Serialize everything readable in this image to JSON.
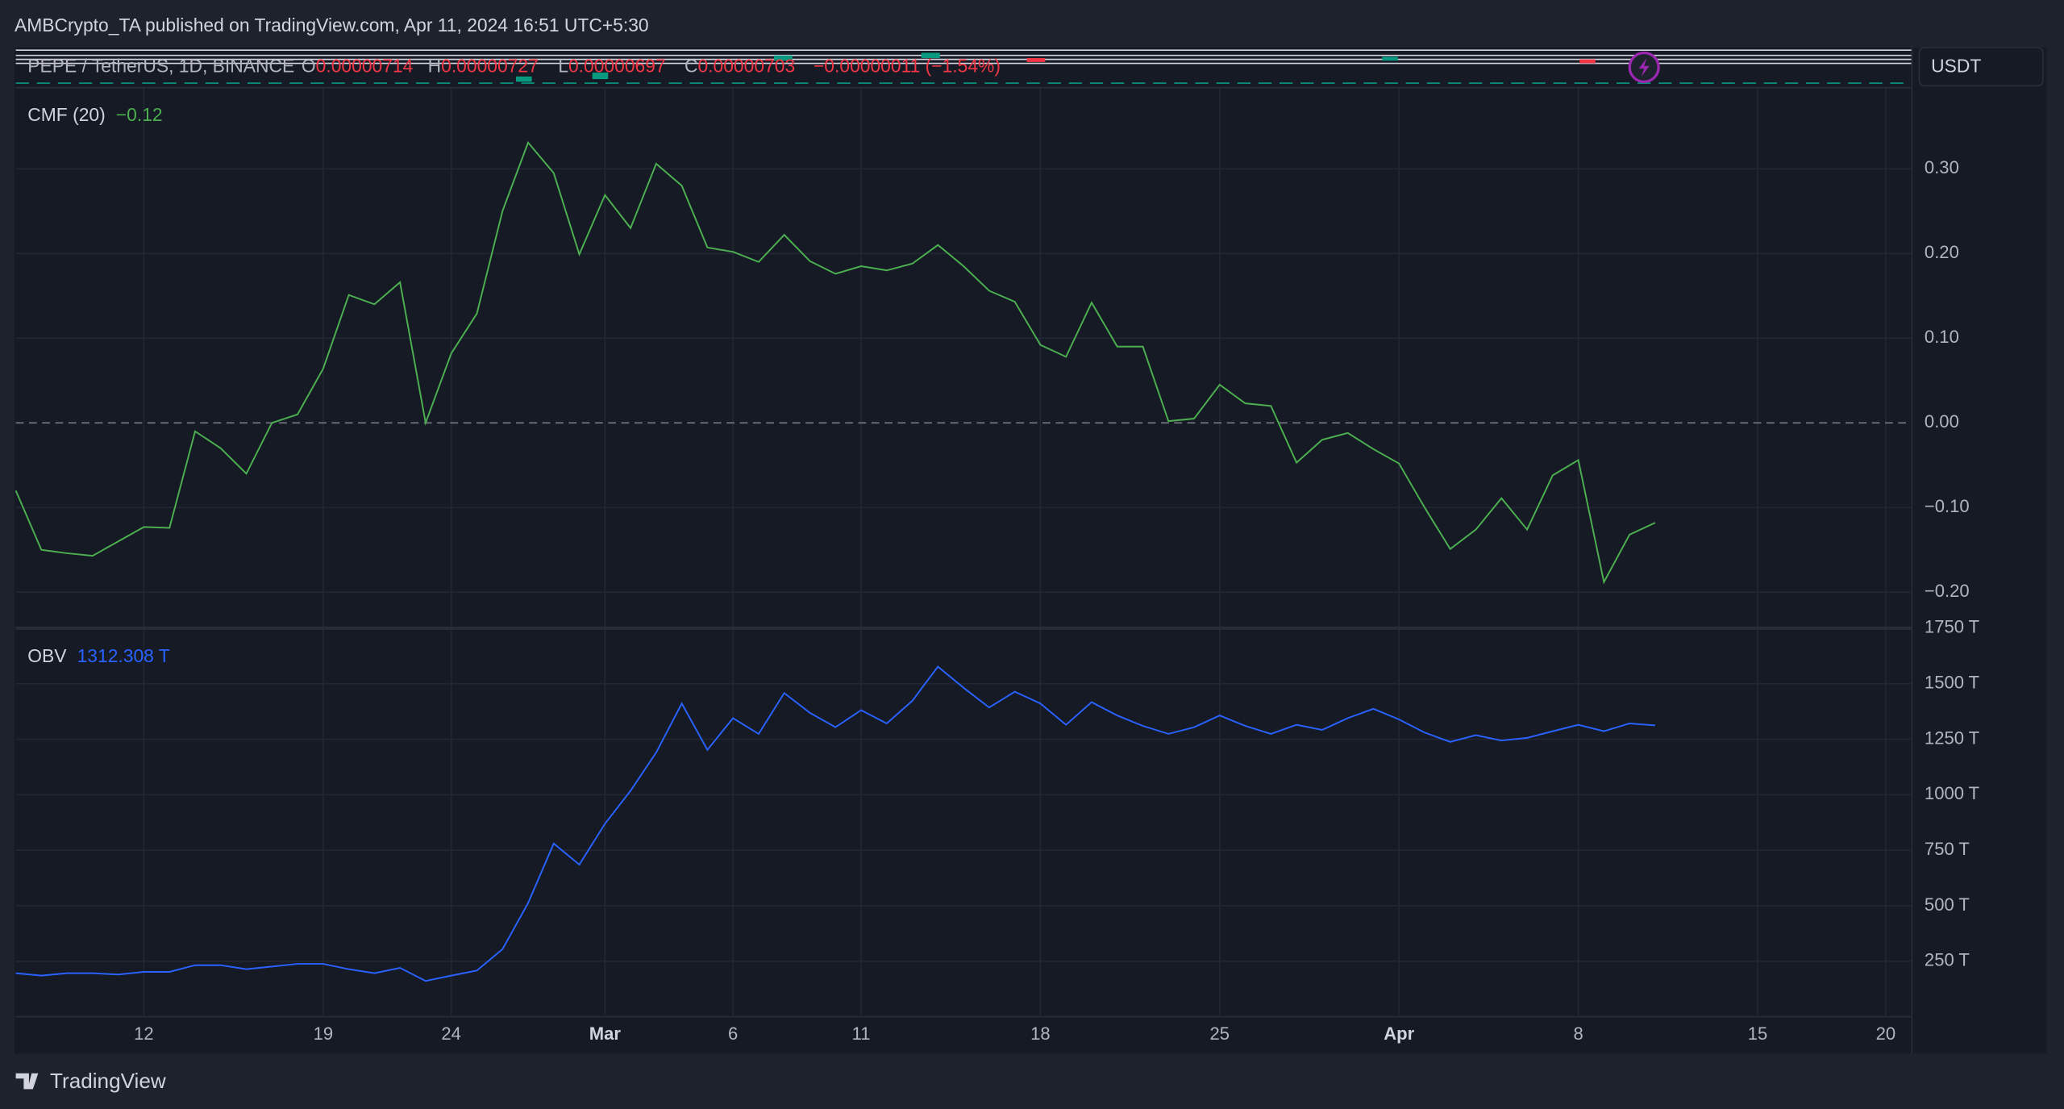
{
  "header": {
    "published": "AMBCrypto_TA published on TradingView.com, Apr 11, 2024 16:51 UTC+5:30",
    "symbol": "PEPE / TetherUS, 1D, BINANCE",
    "open_label": "O",
    "open": "0.00000714",
    "high_label": "H",
    "high": "0.00000727",
    "low_label": "L",
    "low": "0.00000697",
    "close_label": "C",
    "close": "0.00000703",
    "change": "−0.00000011 (−1.54%)",
    "currency": "USDT"
  },
  "footer": {
    "brand": "TradingView"
  },
  "chart_data": [
    {
      "type": "line",
      "title": "CMF (20)",
      "legend_value": "−0.12",
      "color": "#4caf50",
      "legend_value_color": "#4caf50",
      "x": [
        "2024-02-07",
        "2024-02-08",
        "2024-02-09",
        "2024-02-10",
        "2024-02-11",
        "2024-02-12",
        "2024-02-13",
        "2024-02-14",
        "2024-02-15",
        "2024-02-16",
        "2024-02-17",
        "2024-02-18",
        "2024-02-19",
        "2024-02-20",
        "2024-02-21",
        "2024-02-22",
        "2024-02-23",
        "2024-02-24",
        "2024-02-25",
        "2024-02-26",
        "2024-02-27",
        "2024-02-28",
        "2024-02-29",
        "2024-03-01",
        "2024-03-02",
        "2024-03-03",
        "2024-03-04",
        "2024-03-05",
        "2024-03-06",
        "2024-03-07",
        "2024-03-08",
        "2024-03-09",
        "2024-03-10",
        "2024-03-11",
        "2024-03-12",
        "2024-03-13",
        "2024-03-14",
        "2024-03-15",
        "2024-03-16",
        "2024-03-17",
        "2024-03-18",
        "2024-03-19",
        "2024-03-20",
        "2024-03-21",
        "2024-03-22",
        "2024-03-23",
        "2024-03-24",
        "2024-03-25",
        "2024-03-26",
        "2024-03-27",
        "2024-03-28",
        "2024-03-29",
        "2024-03-30",
        "2024-03-31",
        "2024-04-01",
        "2024-04-02",
        "2024-04-03",
        "2024-04-04",
        "2024-04-05",
        "2024-04-06",
        "2024-04-07",
        "2024-04-08",
        "2024-04-09",
        "2024-04-10",
        "2024-04-11"
      ],
      "values": [
        -0.08,
        -0.15,
        -0.154,
        -0.157,
        -0.14,
        -0.123,
        -0.124,
        -0.01,
        -0.03,
        -0.06,
        0.0,
        0.01,
        0.064,
        0.151,
        0.14,
        0.166,
        0.0,
        0.082,
        0.129,
        0.25,
        0.331,
        0.295,
        0.199,
        0.269,
        0.23,
        0.306,
        0.28,
        0.207,
        0.202,
        0.19,
        0.222,
        0.191,
        0.176,
        0.185,
        0.18,
        0.188,
        0.21,
        0.185,
        0.156,
        0.143,
        0.092,
        0.078,
        0.142,
        0.09,
        0.09,
        0.002,
        0.005,
        0.045,
        0.023,
        0.02,
        -0.047,
        -0.02,
        -0.012,
        -0.031,
        -0.048,
        -0.1,
        -0.149,
        -0.126,
        -0.089,
        -0.126,
        -0.062,
        -0.044,
        -0.188,
        -0.132,
        -0.118
      ],
      "xlim": [
        "2024-02-07",
        "2024-04-21"
      ],
      "ylim": [
        -0.241,
        0.395
      ],
      "yticks": [
        {
          "value": -0.2,
          "label": "−0.20"
        },
        {
          "value": -0.1,
          "label": "−0.10"
        },
        {
          "value": 0,
          "label": "0.00"
        },
        {
          "value": 0.1,
          "label": "0.10"
        },
        {
          "value": 0.2,
          "label": "0.20"
        },
        {
          "value": 0.3,
          "label": "0.30"
        }
      ],
      "zero_line": true,
      "grid": true
    },
    {
      "type": "line",
      "title": "OBV",
      "legend_value": "1312.308 T",
      "color": "#2962ff",
      "legend_value_color": "#2962ff",
      "x": [
        "2024-02-07",
        "2024-02-08",
        "2024-02-09",
        "2024-02-10",
        "2024-02-11",
        "2024-02-12",
        "2024-02-13",
        "2024-02-14",
        "2024-02-15",
        "2024-02-16",
        "2024-02-17",
        "2024-02-18",
        "2024-02-19",
        "2024-02-20",
        "2024-02-21",
        "2024-02-22",
        "2024-02-23",
        "2024-02-24",
        "2024-02-25",
        "2024-02-26",
        "2024-02-27",
        "2024-02-28",
        "2024-02-29",
        "2024-03-01",
        "2024-03-02",
        "2024-03-03",
        "2024-03-04",
        "2024-03-05",
        "2024-03-06",
        "2024-03-07",
        "2024-03-08",
        "2024-03-09",
        "2024-03-10",
        "2024-03-11",
        "2024-03-12",
        "2024-03-13",
        "2024-03-14",
        "2024-03-15",
        "2024-03-16",
        "2024-03-17",
        "2024-03-18",
        "2024-03-19",
        "2024-03-20",
        "2024-03-21",
        "2024-03-22",
        "2024-03-23",
        "2024-03-24",
        "2024-03-25",
        "2024-03-26",
        "2024-03-27",
        "2024-03-28",
        "2024-03-29",
        "2024-03-30",
        "2024-03-31",
        "2024-04-01",
        "2024-04-02",
        "2024-04-03",
        "2024-04-04",
        "2024-04-05",
        "2024-04-06",
        "2024-04-07",
        "2024-04-08",
        "2024-04-09",
        "2024-04-10",
        "2024-04-11"
      ],
      "values": [
        196,
        185,
        196,
        196,
        190,
        202,
        202,
        232,
        232,
        214,
        226,
        238,
        238,
        214,
        196,
        220,
        161,
        185,
        208,
        304,
        512,
        780,
        685,
        869,
        1018,
        1190,
        1411,
        1202,
        1345,
        1274,
        1458,
        1369,
        1304,
        1381,
        1321,
        1423,
        1577,
        1482,
        1393,
        1464,
        1411,
        1315,
        1417,
        1357,
        1310,
        1274,
        1304,
        1357,
        1310,
        1274,
        1315,
        1292,
        1345,
        1387,
        1339,
        1280,
        1238,
        1268,
        1244,
        1256,
        1286,
        1315,
        1286,
        1321,
        1312.308
      ],
      "xlim": [
        "2024-02-07",
        "2024-04-21"
      ],
      "ylim": [
        0,
        1744
      ],
      "yticks": [
        {
          "value": 250,
          "label": "250 T"
        },
        {
          "value": 500,
          "label": "500 T"
        },
        {
          "value": 750,
          "label": "750 T"
        },
        {
          "value": 1000,
          "label": "1000 T"
        },
        {
          "value": 1250,
          "label": "1250 T"
        },
        {
          "value": 1500,
          "label": "1500 T"
        },
        {
          "value": 1750,
          "label": "1750 T"
        }
      ],
      "xticks": [
        {
          "value": "2024-02-12",
          "label": "12"
        },
        {
          "value": "2024-02-19",
          "label": "19"
        },
        {
          "value": "2024-02-24",
          "label": "24"
        },
        {
          "value": "2024-03-01",
          "label": "Mar"
        },
        {
          "value": "2024-03-06",
          "label": "6"
        },
        {
          "value": "2024-03-11",
          "label": "11"
        },
        {
          "value": "2024-03-18",
          "label": "18"
        },
        {
          "value": "2024-03-25",
          "label": "25"
        },
        {
          "value": "2024-04-01",
          "label": "Apr"
        },
        {
          "value": "2024-04-08",
          "label": "8"
        },
        {
          "value": "2024-04-15",
          "label": "15"
        },
        {
          "value": "2024-04-20",
          "label": "20"
        }
      ],
      "grid": true
    }
  ]
}
